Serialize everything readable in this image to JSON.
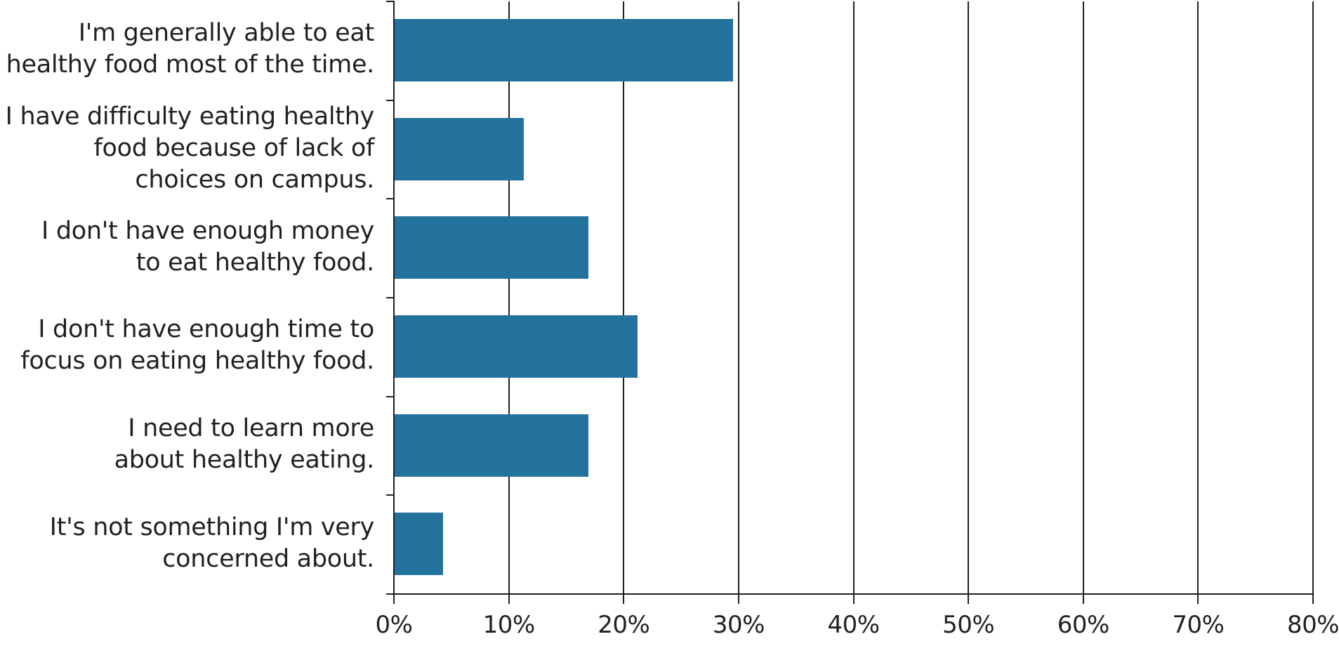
{
  "chart_data": {
    "type": "bar",
    "orientation": "horizontal",
    "title": "",
    "xlabel": "",
    "ylabel": "",
    "categories": [
      "I'm generally able to eat healthy food most of the time.",
      "I have difficulty eating healthy food because of lack of choices on campus.",
      "I don't have enough money to eat healthy food.",
      "I don't have enough time to focus on eating healthy food.",
      "I need to learn more about healthy eating.",
      "It's not something I'm very concerned about."
    ],
    "category_lines": [
      [
        "I'm generally able to eat",
        "healthy food most of the time."
      ],
      [
        "I have difficulty eating healthy",
        "food because of lack of",
        "choices on campus."
      ],
      [
        "I don't have enough money",
        "to eat healthy food."
      ],
      [
        "I don't have enough time to",
        "focus on eating healthy food."
      ],
      [
        "I need to learn more",
        "about healthy eating."
      ],
      [
        "It's not something I'm very",
        "concerned about."
      ]
    ],
    "values": [
      29.5,
      11.3,
      16.9,
      21.2,
      16.9,
      4.3
    ],
    "xlim": [
      0,
      80
    ],
    "xticks": [
      0,
      10,
      20,
      30,
      40,
      50,
      60,
      70,
      80
    ],
    "xtick_labels": [
      "0%",
      "10%",
      "20%",
      "30%",
      "40%",
      "50%",
      "60%",
      "70%",
      "80%"
    ],
    "grid": "vertical",
    "legend": null,
    "bar_color": "#23729e"
  }
}
